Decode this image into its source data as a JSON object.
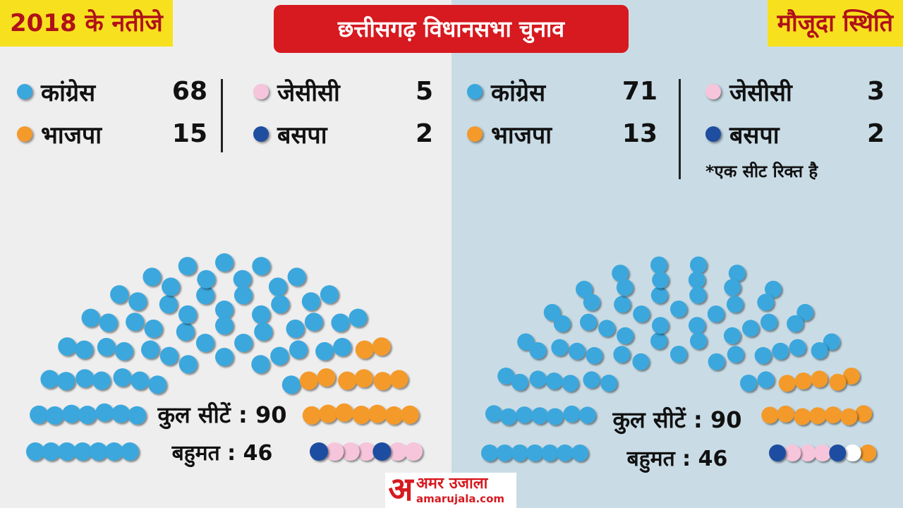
{
  "header": {
    "left_label": "2018 के नतीजे",
    "title": "छत्तीसगढ़ विधानसभा चुनाव",
    "right_label": "मौजूदा स्थिति"
  },
  "left": {
    "legend": [
      {
        "party": "कांग्रेस",
        "seats": "68",
        "color": "#3aa7dd"
      },
      {
        "party": "भाजपा",
        "seats": "15",
        "color": "#f39a2b"
      },
      {
        "party": "जेसीसी",
        "seats": "5",
        "color": "#f6c5db"
      },
      {
        "party": "बसपा",
        "seats": "2",
        "color": "#1f4da0"
      }
    ],
    "total_text": "कुल सीटें : 90",
    "majority_text": "बहुमत : 46"
  },
  "right": {
    "legend": [
      {
        "party": "कांग्रेस",
        "seats": "71",
        "color": "#3aa7dd"
      },
      {
        "party": "भाजपा",
        "seats": "13",
        "color": "#f39a2b"
      },
      {
        "party": "जेसीसी",
        "seats": "3",
        "color": "#f6c5db"
      },
      {
        "party": "बसपा",
        "seats": "2",
        "color": "#1f4da0"
      }
    ],
    "note": "*एक सीट रिक्त है",
    "total_text": "कुल सीटें : 90",
    "majority_text": "बहुमत : 46"
  },
  "chart_data": [
    {
      "type": "parliament",
      "title": "2018 के नतीजे",
      "total": 90,
      "majority": 46,
      "series": [
        {
          "name": "कांग्रेस",
          "values": [
            68
          ],
          "color": "#3aa7dd"
        },
        {
          "name": "भाजपा",
          "values": [
            15
          ],
          "color": "#f39a2b"
        },
        {
          "name": "जेसीसी",
          "values": [
            5
          ],
          "color": "#f6c5db"
        },
        {
          "name": "बसपा",
          "values": [
            2
          ],
          "color": "#1f4da0"
        }
      ]
    },
    {
      "type": "parliament",
      "title": "मौजूदा स्थिति",
      "total": 90,
      "majority": 46,
      "series": [
        {
          "name": "कांग्रेस",
          "values": [
            71
          ],
          "color": "#3aa7dd"
        },
        {
          "name": "भाजपा",
          "values": [
            13
          ],
          "color": "#f39a2b"
        },
        {
          "name": "रिक्त",
          "values": [
            1
          ],
          "color": "#ffffff"
        },
        {
          "name": "जेसीसी",
          "values": [
            3
          ],
          "color": "#f6c5db"
        },
        {
          "name": "बसपा",
          "values": [
            2
          ],
          "color": "#1f4da0"
        }
      ]
    }
  ],
  "logo": {
    "mark": "अ",
    "name": "अमर उजाला",
    "url": "amarujala.com"
  }
}
